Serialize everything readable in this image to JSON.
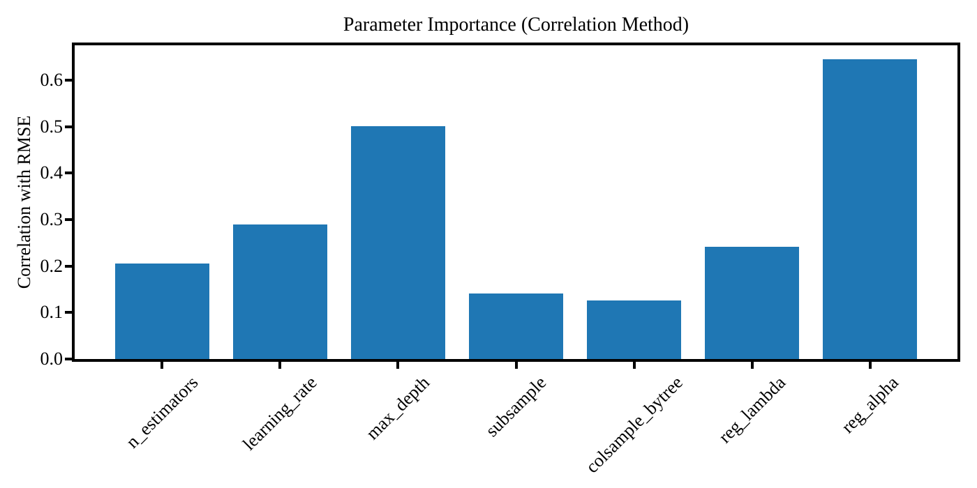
{
  "chart_data": {
    "type": "bar",
    "title": "Parameter Importance (Correlation Method)",
    "xlabel": "",
    "ylabel": "Correlation with RMSE",
    "categories": [
      "n_estimators",
      "learning_rate",
      "max_depth",
      "subsample",
      "colsample_bytree",
      "reg_lambda",
      "reg_alpha"
    ],
    "values": [
      0.205,
      0.29,
      0.501,
      0.141,
      0.126,
      0.242,
      0.645
    ],
    "ylim": [
      0,
      0.675
    ],
    "yticks": [
      0.0,
      0.1,
      0.2,
      0.3,
      0.4,
      0.5,
      0.6
    ],
    "ytick_labels": [
      "0.0",
      "0.1",
      "0.2",
      "0.3",
      "0.4",
      "0.5",
      "0.6"
    ],
    "bar_color": "#1f77b4",
    "axis_color": "#000000",
    "background_color": "#ffffff",
    "grid": false,
    "legend": "none",
    "xtick_rotation_deg": 45
  }
}
